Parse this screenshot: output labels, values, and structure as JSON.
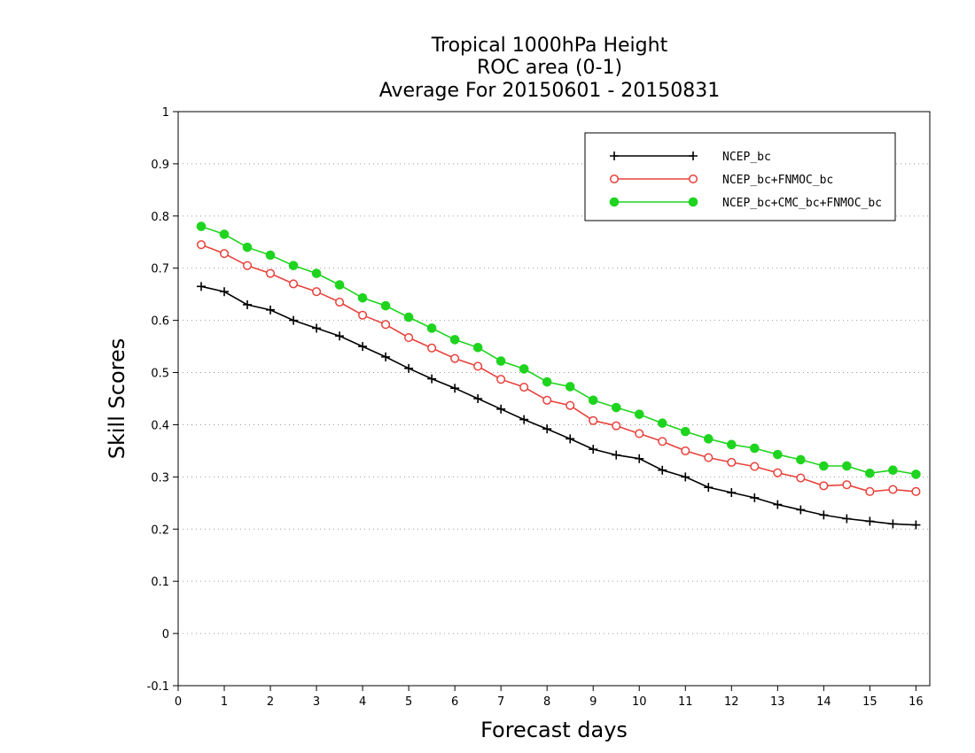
{
  "chart_data": {
    "type": "line",
    "title": [
      "Tropical 1000hPa Height",
      "ROC area (0-1)",
      "Average For 20150601 - 20150831"
    ],
    "xlabel": "Forecast days",
    "ylabel": "Skill Scores",
    "xlim": [
      0,
      16.3
    ],
    "ylim": [
      -0.1,
      1.0
    ],
    "xticks": [
      0,
      1,
      2,
      3,
      4,
      5,
      6,
      7,
      8,
      9,
      10,
      11,
      12,
      13,
      14,
      15,
      16
    ],
    "yticks": [
      -0.1,
      0,
      0.1,
      0.2,
      0.3,
      0.4,
      0.5,
      0.6,
      0.7,
      0.8,
      0.9,
      1
    ],
    "ytick_labels": [
      "-0.1",
      "0",
      "0.1",
      "0.2",
      "0.3",
      "0.4",
      "0.5",
      "0.6",
      "0.7",
      "0.8",
      "0.9",
      "1"
    ],
    "grid": "horizontal-dotted",
    "legend_position": "top-right",
    "x": [
      0.5,
      1,
      1.5,
      2,
      2.5,
      3,
      3.5,
      4,
      4.5,
      5,
      5.5,
      6,
      6.5,
      7,
      7.5,
      8,
      8.5,
      9,
      9.5,
      10,
      10.5,
      11,
      11.5,
      12,
      12.5,
      13,
      13.5,
      14,
      14.5,
      15,
      15.5,
      16
    ],
    "series": [
      {
        "name": "NCEP_bc",
        "color": "#000000",
        "marker": "plus",
        "values": [
          0.665,
          0.655,
          0.63,
          0.62,
          0.6,
          0.585,
          0.57,
          0.55,
          0.53,
          0.508,
          0.488,
          0.47,
          0.45,
          0.43,
          0.41,
          0.392,
          0.373,
          0.353,
          0.342,
          0.335,
          0.313,
          0.3,
          0.28,
          0.27,
          0.26,
          0.247,
          0.237,
          0.227,
          0.22,
          0.215,
          0.21,
          0.208
        ]
      },
      {
        "name": "NCEP_bc+FNMOC_bc",
        "color": "#e8423c",
        "marker": "open-circle",
        "values": [
          0.745,
          0.728,
          0.705,
          0.69,
          0.67,
          0.655,
          0.635,
          0.61,
          0.592,
          0.567,
          0.547,
          0.527,
          0.512,
          0.487,
          0.472,
          0.447,
          0.437,
          0.408,
          0.398,
          0.383,
          0.368,
          0.35,
          0.337,
          0.328,
          0.32,
          0.308,
          0.298,
          0.283,
          0.285,
          0.272,
          0.276,
          0.272
        ]
      },
      {
        "name": "NCEP_bc+CMC_bc+FNMOC_bc",
        "color": "#1fd41f",
        "marker": "filled-circle",
        "values": [
          0.78,
          0.765,
          0.74,
          0.725,
          0.705,
          0.69,
          0.668,
          0.643,
          0.628,
          0.606,
          0.585,
          0.563,
          0.548,
          0.522,
          0.507,
          0.482,
          0.473,
          0.447,
          0.433,
          0.42,
          0.403,
          0.387,
          0.373,
          0.362,
          0.355,
          0.343,
          0.333,
          0.321,
          0.321,
          0.307,
          0.313,
          0.305
        ]
      }
    ]
  }
}
